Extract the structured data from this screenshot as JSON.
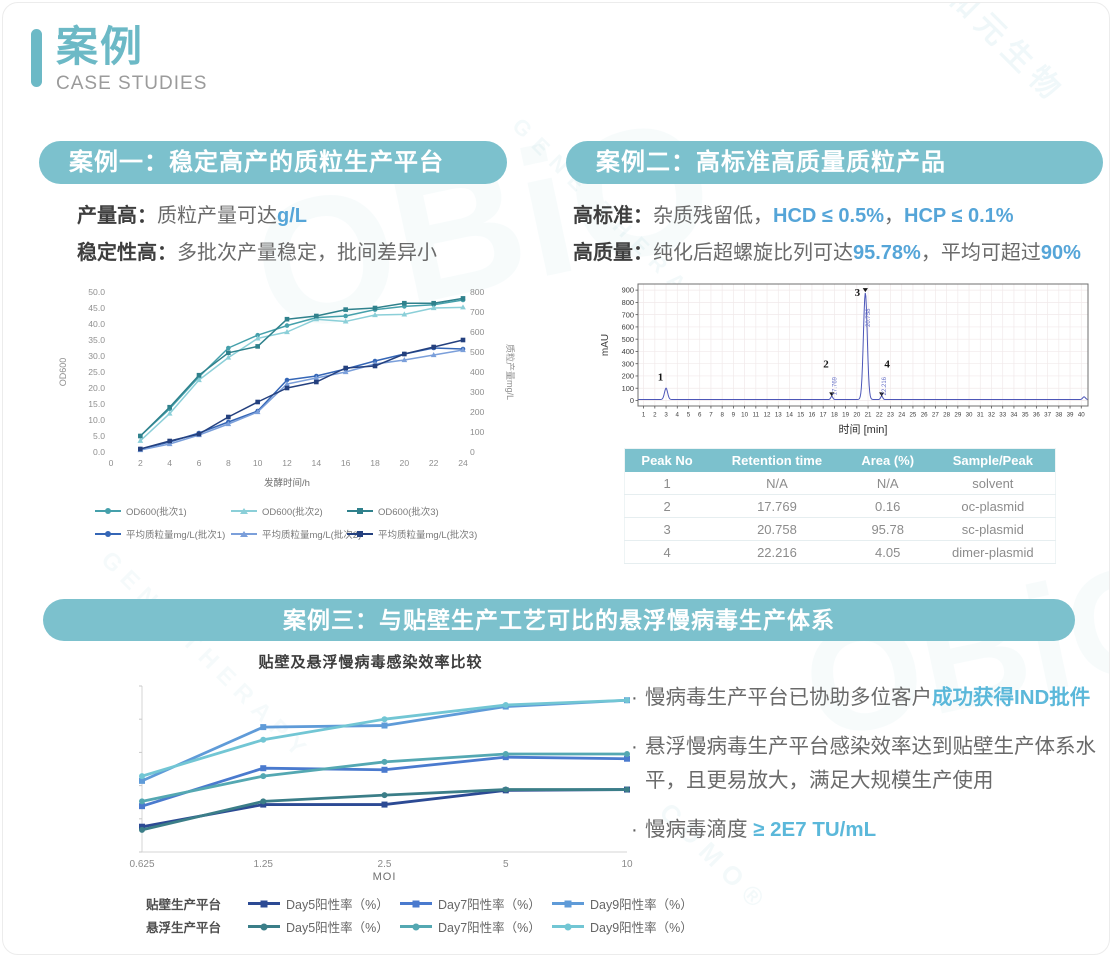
{
  "header": {
    "title": "案例",
    "subtitle": "CASE STUDIES"
  },
  "watermark": {
    "brand_en": "OBiO",
    "brand_zh": "和元生物",
    "tagline": "GENE THERAPY",
    "suffix": "CDMO®"
  },
  "colors": {
    "accent_teal": "#7cc1cd",
    "header_teal": "#6cb9c6",
    "highlight_blue": "#55a5d8",
    "highlight_teal": "#5bb8da"
  },
  "case1": {
    "title": "案例一：稳定高产的质粒生产平台",
    "line1": [
      {
        "t": "产量高：",
        "s": "label"
      },
      {
        "t": "质粒产量可达",
        "s": "body"
      },
      {
        "t": "g/L",
        "s": "blue"
      }
    ],
    "line2": [
      {
        "t": "稳定性高：",
        "s": "label"
      },
      {
        "t": "多批次产量稳定，批间差异小",
        "s": "body"
      }
    ],
    "chart_data": {
      "type": "line",
      "x": [
        2,
        4,
        6,
        8,
        10,
        12,
        14,
        16,
        18,
        20,
        22,
        24
      ],
      "xlabel": "发酵时间/h",
      "x_axis": {
        "min": 0,
        "max": 24,
        "step": 2
      },
      "left_axis": {
        "label": "OD600",
        "min": 0,
        "max": 50,
        "step": 5,
        "decimals": 1
      },
      "right_axis": {
        "label": "质粒产量mg/L",
        "min": 0,
        "max": 800,
        "step": 100,
        "decimals": 0
      },
      "grid": false,
      "series": [
        {
          "name": "OD600(批次1)",
          "axis": "left",
          "color": "#45a0ab",
          "marker": "circle",
          "values": [
            5,
            13.5,
            23.5,
            32.5,
            36.5,
            39.5,
            42,
            42.5,
            44.5,
            45.5,
            46,
            47.5
          ]
        },
        {
          "name": "OD600(批次2)",
          "axis": "left",
          "color": "#8bcfd8",
          "marker": "triangle",
          "values": [
            3.5,
            12,
            22.5,
            29.5,
            35.5,
            37.5,
            41.5,
            40.8,
            42.8,
            43,
            45,
            45.2
          ]
        },
        {
          "name": "OD600(批次3)",
          "axis": "left",
          "color": "#2f818c",
          "marker": "square",
          "values": [
            5,
            14,
            24,
            31,
            33,
            41.5,
            42.5,
            44.5,
            45,
            46.5,
            46.5,
            48
          ]
        },
        {
          "name": "平均质粒量mg/L(批次1)",
          "axis": "right",
          "color": "#3566b6",
          "marker": "circle",
          "values": [
            15,
            50,
            95,
            150,
            205,
            360,
            380,
            415,
            455,
            490,
            520,
            515
          ]
        },
        {
          "name": "平均质粒量mg/L(批次2)",
          "axis": "right",
          "color": "#7b9fda",
          "marker": "triangle",
          "values": [
            10,
            40,
            85,
            140,
            200,
            340,
            370,
            400,
            440,
            460,
            485,
            510
          ]
        },
        {
          "name": "平均质粒量mg/L(批次3)",
          "axis": "right",
          "color": "#24407e",
          "marker": "square",
          "values": [
            15,
            55,
            90,
            175,
            250,
            320,
            350,
            420,
            430,
            490,
            525,
            560
          ]
        }
      ]
    }
  },
  "case2": {
    "title": "案例二：高标准高质量质粒产品",
    "line1": [
      {
        "t": "高标准：",
        "s": "label"
      },
      {
        "t": "杂质残留低，",
        "s": "body"
      },
      {
        "t": "HCD ≤ 0.5%",
        "s": "blue"
      },
      {
        "t": "，",
        "s": "body"
      },
      {
        "t": "HCP ≤ 0.1%",
        "s": "blue"
      }
    ],
    "line2": [
      {
        "t": "高质量：",
        "s": "label"
      },
      {
        "t": "纯化后超螺旋比列可达",
        "s": "body"
      },
      {
        "t": "95.78%",
        "s": "blue"
      },
      {
        "t": "，平均可超过",
        "s": "body"
      },
      {
        "t": "90%",
        "s": "blue"
      }
    ],
    "chart_data": {
      "type": "chromatogram",
      "xlabel": "时间 [min]",
      "ylabel": "mAU",
      "x_ticks_min": 1,
      "x_ticks_max": 40,
      "y_axis": {
        "min": 0,
        "max": 900,
        "step": 100
      },
      "baseline_mau": 8,
      "line_color": "#4d57b8",
      "peaks": [
        {
          "no": "1",
          "rt_min": 3.0,
          "height_mau": 92,
          "rt_label": ""
        },
        {
          "no": "2",
          "rt_min": 17.769,
          "height_mau": 26,
          "rt_label": "17.769"
        },
        {
          "no": "3",
          "rt_min": 20.758,
          "height_mau": 870,
          "rt_label": "20.758"
        },
        {
          "no": "4",
          "rt_min": 22.216,
          "height_mau": 28,
          "rt_label": "22.216"
        },
        {
          "no": "",
          "rt_min": 40.25,
          "height_mau": 22,
          "rt_label": ""
        }
      ]
    },
    "table": {
      "headers": [
        "Peak No",
        "Retention time",
        "Area (%)",
        "Sample/Peak"
      ],
      "rows": [
        [
          "1",
          "N/A",
          "N/A",
          "solvent"
        ],
        [
          "2",
          "17.769",
          "0.16",
          "oc-plasmid"
        ],
        [
          "3",
          "20.758",
          "95.78",
          "sc-plasmid"
        ],
        [
          "4",
          "22.216",
          "4.05",
          "dimer-plasmid"
        ]
      ]
    }
  },
  "case3": {
    "title": "案例三：与贴壁生产工艺可比的悬浮慢病毒生产体系",
    "chart_title": "贴壁及悬浮慢病毒感染效率比较",
    "chart_data": {
      "type": "line",
      "x_labels": [
        "0.625",
        "1.25",
        "2.5",
        "5",
        "10"
      ],
      "xlabel": "MOI",
      "ylim": [
        0,
        105
      ],
      "y_tick_labels_hidden": true,
      "series": [
        {
          "group": "贴壁生产平台",
          "name": "Day5阳性率（%）",
          "color": "#2c4a94",
          "marker": "square",
          "values": [
            16,
            30,
            30,
            39,
            39.5
          ]
        },
        {
          "group": "贴壁生产平台",
          "name": "Day7阳性率（%）",
          "color": "#4a7ace",
          "marker": "square",
          "values": [
            29,
            53,
            52,
            60,
            59
          ]
        },
        {
          "group": "贴壁生产平台",
          "name": "Day9阳性率（%）",
          "color": "#5f9bd8",
          "marker": "square",
          "values": [
            45,
            79,
            80,
            92,
            96
          ]
        },
        {
          "group": "悬浮生产平台",
          "name": "Day5阳性率（%）",
          "color": "#3b7e88",
          "marker": "circle",
          "values": [
            14,
            32,
            36,
            39.5,
            39.5
          ]
        },
        {
          "group": "悬浮生产平台",
          "name": "Day7阳性率（%）",
          "color": "#54a8b2",
          "marker": "circle",
          "values": [
            32,
            48,
            57,
            62,
            62
          ]
        },
        {
          "group": "悬浮生产平台",
          "name": "Day9阳性率（%）",
          "color": "#72c6d4",
          "marker": "circle",
          "values": [
            48,
            71,
            84,
            93,
            96
          ]
        }
      ]
    },
    "bullets": [
      {
        "segments": [
          {
            "t": "慢病毒生产平台已协助多位客户",
            "s": "body"
          },
          {
            "t": "成功获得IND批件",
            "s": "teal"
          }
        ]
      },
      {
        "segments": [
          {
            "t": "悬浮慢病毒生产平台感染效率达到贴壁生产体系水平，且更易放大，满足大规模生产使用",
            "s": "body"
          }
        ]
      },
      {
        "segments": [
          {
            "t": "慢病毒滴度 ",
            "s": "body"
          },
          {
            "t": "≥ 2E7 TU/mL",
            "s": "teal"
          }
        ]
      }
    ]
  }
}
